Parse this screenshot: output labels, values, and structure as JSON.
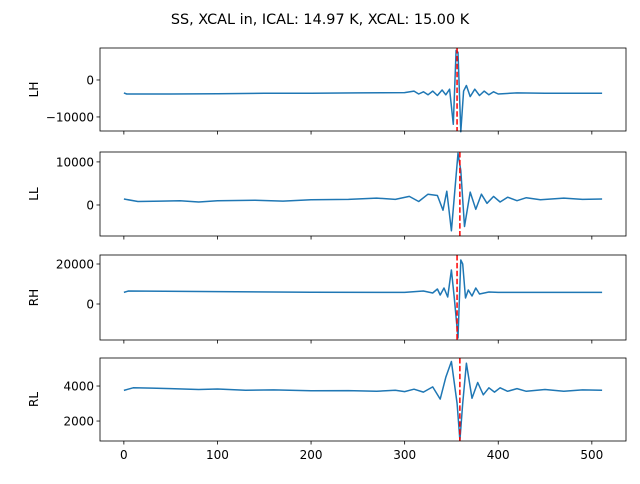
{
  "chart_data": {
    "type": "line",
    "title": "SS, XCAL in, ICAL: 14.97 K, XCAL: 15.00 K",
    "xlim": [
      -25.5,
      536.5
    ],
    "xticks": [
      0,
      100,
      200,
      300,
      400,
      500
    ],
    "line_color": "#1f77b4",
    "marker_color": "#ff0000",
    "panels": [
      {
        "ylabel": "LH",
        "ylim": [
          -13800,
          8650
        ],
        "yticks": [
          {
            "v": 0,
            "label": "0"
          },
          {
            "v": -10000,
            "label": "−10000"
          }
        ],
        "marker_x": 356,
        "x": [
          0,
          3,
          50,
          100,
          150,
          200,
          250,
          300,
          310,
          315,
          320,
          325,
          330,
          335,
          340,
          344,
          348,
          352,
          355,
          357,
          360,
          363,
          366,
          370,
          375,
          380,
          385,
          390,
          395,
          400,
          420,
          450,
          511
        ],
        "y": [
          -3500,
          -3800,
          -3800,
          -3700,
          -3600,
          -3600,
          -3500,
          -3400,
          -3000,
          -3800,
          -3200,
          -4000,
          -3000,
          -4200,
          -2700,
          -4000,
          -2500,
          -12000,
          8000,
          7500,
          -14000,
          -3000,
          -1500,
          -4500,
          -2500,
          -4200,
          -3000,
          -4000,
          -3200,
          -3800,
          -3500,
          -3600,
          -3600
        ]
      },
      {
        "ylabel": "LL",
        "ylim": [
          -7200,
          12300
        ],
        "yticks": [
          {
            "v": 10000,
            "label": "10000"
          },
          {
            "v": 0,
            "label": "0"
          }
        ],
        "marker_x": 359,
        "x": [
          0,
          15,
          40,
          60,
          80,
          100,
          140,
          170,
          200,
          240,
          270,
          290,
          305,
          315,
          325,
          335,
          341,
          345,
          350,
          357,
          360,
          364,
          370,
          376,
          382,
          388,
          395,
          402,
          410,
          420,
          430,
          445,
          470,
          490,
          511
        ],
        "y": [
          1400,
          800,
          900,
          1000,
          700,
          1000,
          1100,
          900,
          1200,
          1300,
          1600,
          1300,
          2000,
          800,
          2500,
          2200,
          -1200,
          3200,
          -6000,
          12000,
          8000,
          -5000,
          3000,
          -1000,
          2500,
          400,
          2000,
          700,
          1800,
          1000,
          1700,
          1200,
          1600,
          1300,
          1400
        ]
      },
      {
        "ylabel": "RH",
        "ylim": [
          -18000,
          24500
        ],
        "yticks": [
          {
            "v": 20000,
            "label": "20000"
          },
          {
            "v": 0,
            "label": "0"
          }
        ],
        "marker_x": 356,
        "x": [
          0,
          5,
          100,
          200,
          300,
          320,
          330,
          335,
          338,
          342,
          346,
          350,
          353,
          357,
          360,
          362,
          365,
          368,
          372,
          376,
          380,
          390,
          400,
          511
        ],
        "y": [
          5800,
          6500,
          6200,
          5900,
          5800,
          6500,
          5500,
          7500,
          4500,
          8000,
          3500,
          17000,
          3000,
          -17000,
          22000,
          20000,
          3000,
          7000,
          4000,
          8000,
          5000,
          6000,
          5800,
          5800
        ]
      },
      {
        "ylabel": "RL",
        "ylim": [
          860,
          5600
        ],
        "yticks": [
          {
            "v": 4000,
            "label": "4000"
          },
          {
            "v": 2000,
            "label": "2000"
          }
        ],
        "marker_x": 359,
        "x": [
          0,
          10,
          30,
          50,
          80,
          100,
          130,
          160,
          200,
          240,
          270,
          290,
          300,
          310,
          320,
          330,
          338,
          344,
          350,
          356,
          359,
          362,
          366,
          372,
          378,
          384,
          390,
          396,
          402,
          410,
          420,
          430,
          450,
          470,
          490,
          511
        ],
        "y": [
          3750,
          3900,
          3880,
          3850,
          3800,
          3830,
          3760,
          3780,
          3730,
          3740,
          3700,
          3760,
          3680,
          3820,
          3650,
          3950,
          3250,
          4500,
          5400,
          3000,
          900,
          3000,
          5300,
          3300,
          4200,
          3500,
          3900,
          3650,
          3900,
          3700,
          3850,
          3700,
          3800,
          3700,
          3780,
          3760
        ]
      }
    ]
  }
}
